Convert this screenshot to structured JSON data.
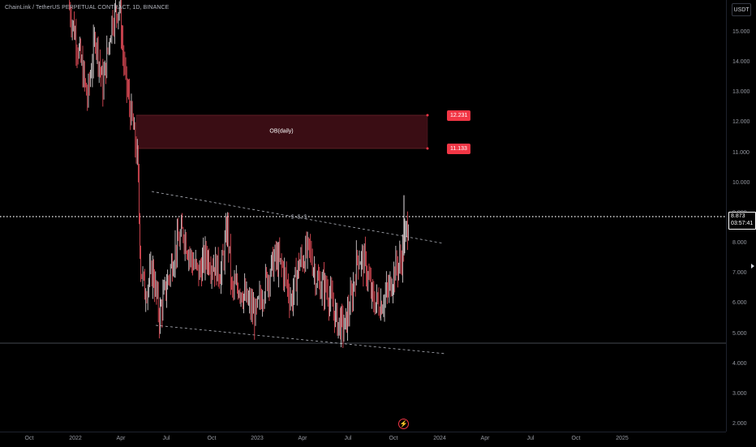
{
  "symbol_title": "ChainLink / TetherUS PERPETUAL CONTRACT, 1D, BINANCE",
  "currency": "USDT",
  "price_axis_ticks": [
    "15.000",
    "14.000",
    "13.000",
    "12.000",
    "11.000",
    "10.000",
    "9.000",
    "8.000",
    "7.000",
    "6.000",
    "5.000",
    "4.000",
    "3.000",
    "2.000"
  ],
  "time_axis_ticks": [
    "Oct",
    "2022",
    "Apr",
    "Jul",
    "Oct",
    "2023",
    "Apr",
    "Jul",
    "Oct",
    "2024",
    "Apr",
    "Jul",
    "Oct",
    "2025"
  ],
  "order_block": {
    "label": "OB(daily)",
    "top_price": "12.231",
    "bottom_price": "11.133"
  },
  "ssl_label": "$ $ $",
  "last_price": {
    "price": "8.873",
    "countdown": "03:57:41"
  },
  "colors": {
    "up": "#26a69a",
    "down": "#f23645",
    "candle": "#e9e1e3",
    "ob_fill": "#3a0d14",
    "badge": "#f23645"
  },
  "chart_data": {
    "type": "candlestick",
    "title": "ChainLink / TetherUS PERPETUAL CONTRACT, 1D, BINANCE",
    "y_range": [
      2.0,
      15.6
    ],
    "x_range": [
      "2021-10-01",
      "2025-10-31"
    ],
    "last_close": 8.873,
    "horizontal_line_price": 4.7,
    "descending_trendlines": [
      {
        "from": [
          "2022-06-01",
          9.75
        ],
        "to": [
          "2023-12-01",
          7.98
        ]
      },
      {
        "from": [
          "2022-06-05",
          5.3
        ],
        "to": [
          "2023-12-01",
          4.35
        ]
      }
    ],
    "order_block_zone": {
      "from": "2022-04-20",
      "to": "2023-11-01",
      "top": 12.231,
      "bottom": 11.133
    },
    "price_path": [
      [
        "2021-12-20",
        15.8
      ],
      [
        "2022-01-10",
        14.2
      ],
      [
        "2022-01-25",
        12.8
      ],
      [
        "2022-02-10",
        14.9
      ],
      [
        "2022-02-25",
        13.2
      ],
      [
        "2022-03-15",
        15.4
      ],
      [
        "2022-03-30",
        15.9
      ],
      [
        "2022-04-10",
        13.6
      ],
      [
        "2022-04-25",
        12.0
      ],
      [
        "2022-05-05",
        10.8
      ],
      [
        "2022-05-12",
        7.2
      ],
      [
        "2022-05-20",
        6.4
      ],
      [
        "2022-06-05",
        7.1
      ],
      [
        "2022-06-18",
        5.6
      ],
      [
        "2022-07-01",
        6.5
      ],
      [
        "2022-07-20",
        7.8
      ],
      [
        "2022-08-05",
        8.4
      ],
      [
        "2022-08-20",
        7.5
      ],
      [
        "2022-09-05",
        7.0
      ],
      [
        "2022-09-20",
        7.6
      ],
      [
        "2022-10-05",
        7.3
      ],
      [
        "2022-10-20",
        7.0
      ],
      [
        "2022-11-02",
        8.6
      ],
      [
        "2022-11-10",
        6.4
      ],
      [
        "2022-11-25",
        6.6
      ],
      [
        "2022-12-10",
        6.1
      ],
      [
        "2022-12-28",
        5.6
      ],
      [
        "2023-01-15",
        6.6
      ],
      [
        "2023-02-05",
        7.5
      ],
      [
        "2023-02-20",
        7.2
      ],
      [
        "2023-03-10",
        6.1
      ],
      [
        "2023-03-25",
        7.3
      ],
      [
        "2023-04-15",
        7.8
      ],
      [
        "2023-05-01",
        6.7
      ],
      [
        "2023-05-20",
        6.5
      ],
      [
        "2023-06-10",
        5.4
      ],
      [
        "2023-06-25",
        5.2
      ],
      [
        "2023-07-10",
        6.3
      ],
      [
        "2023-07-20",
        7.6
      ],
      [
        "2023-08-05",
        7.3
      ],
      [
        "2023-08-20",
        6.1
      ],
      [
        "2023-09-05",
        6.0
      ],
      [
        "2023-09-20",
        6.4
      ],
      [
        "2023-10-05",
        7.2
      ],
      [
        "2023-10-15",
        7.4
      ],
      [
        "2023-10-25",
        8.3
      ],
      [
        "2023-11-01",
        8.87
      ]
    ]
  }
}
